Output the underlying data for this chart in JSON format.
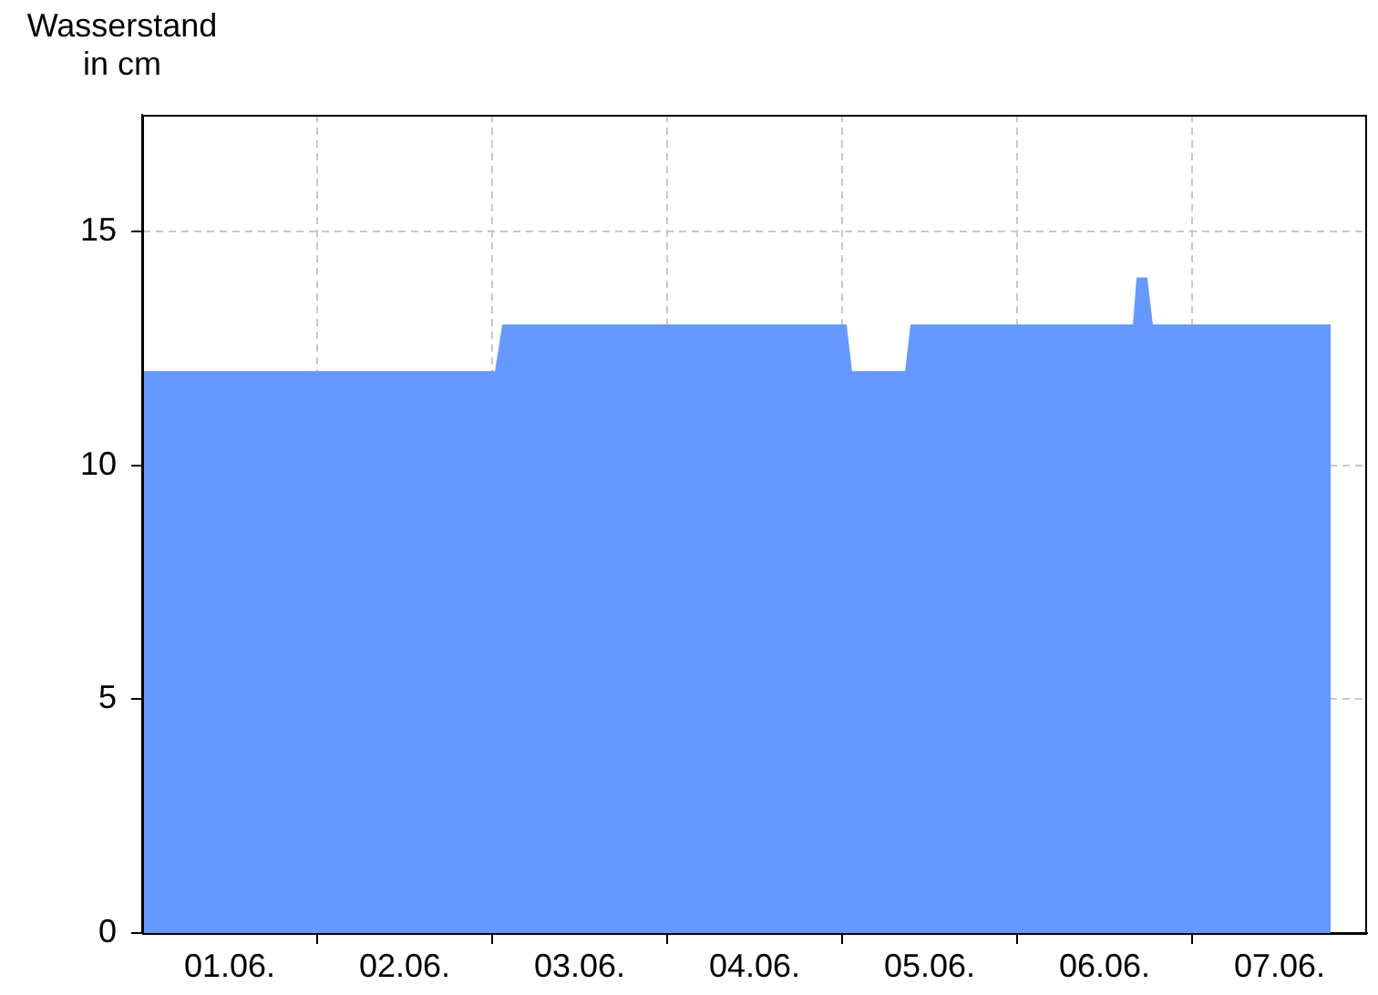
{
  "chart_data": {
    "type": "area",
    "ylabel": "Wasserstand in cm",
    "x": [
      "--06-01T00:00",
      "--06-03T00:30",
      "--06-03T01:30",
      "--06-05T00:30",
      "--06-05T01:15",
      "--06-05T08:45",
      "--06-05T09:30",
      "--06-06T16:00",
      "--06-06T16:30",
      "--06-06T17:45",
      "--06-06T18:30",
      "--06-07T19:00"
    ],
    "series": [
      {
        "color": "#6699ff",
        "values": [
          12,
          12,
          13,
          13,
          12,
          12,
          13,
          13,
          14,
          14,
          13,
          13
        ]
      }
    ],
    "xlim": [
      "--06-01T00:00",
      "--06-08T00:00"
    ],
    "xticks": [
      {
        "value": "--06-01T12:00",
        "label": "01.06."
      },
      {
        "value": "--06-02T00:00",
        "label": null
      },
      {
        "value": "--06-02T12:00",
        "label": "02.06."
      },
      {
        "value": "--06-03T00:00",
        "label": null
      },
      {
        "value": "--06-03T12:00",
        "label": "03.06."
      },
      {
        "value": "--06-04T00:00",
        "label": null
      },
      {
        "value": "--06-04T12:00",
        "label": "04.06."
      },
      {
        "value": "--06-05T00:00",
        "label": null
      },
      {
        "value": "--06-05T12:00",
        "label": "05.06."
      },
      {
        "value": "--06-06T00:00",
        "label": null
      },
      {
        "value": "--06-06T12:00",
        "label": "06.06."
      },
      {
        "value": "--06-07T00:00",
        "label": null
      },
      {
        "value": "--06-07T12:00",
        "label": "07.06."
      }
    ],
    "ylim": [
      0,
      17.5
    ],
    "yticks": [
      0,
      5,
      10,
      15
    ],
    "grid": true
  }
}
